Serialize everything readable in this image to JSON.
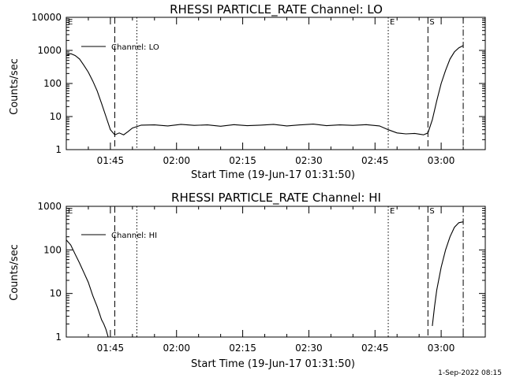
{
  "footer": {
    "date_stamp": "1-Sep-2022 08:15"
  },
  "chart_data": [
    {
      "type": "line",
      "title": "RHESSI PARTICLE_RATE Channel: LO",
      "xlabel": "Start Time (19-Jun-17 01:31:50)",
      "ylabel": "Counts/sec",
      "y_scale": "log",
      "ylim": [
        1,
        10000
      ],
      "xlim": [
        "01:35",
        "03:10"
      ],
      "x_ticks": [
        "01:45",
        "02:00",
        "02:15",
        "02:30",
        "02:45",
        "03:00"
      ],
      "y_ticks": [
        "1",
        "10",
        "100",
        "1000",
        "10000"
      ],
      "legend": {
        "position": "top-left",
        "entries": [
          "Channel: LO"
        ]
      },
      "markers": [
        {
          "time": "01:35",
          "style": "solid",
          "label": "E"
        },
        {
          "time": "01:46",
          "style": "dashed",
          "label": ""
        },
        {
          "time": "01:51",
          "style": "dotted",
          "label": ""
        },
        {
          "time": "02:48",
          "style": "dotted",
          "label": "E"
        },
        {
          "time": "02:57",
          "style": "dashed",
          "label": "S"
        },
        {
          "time": "03:05",
          "style": "dashdot",
          "label": ""
        }
      ],
      "series": [
        {
          "name": "Channel: LO",
          "x": [
            "01:35",
            "01:36",
            "01:37",
            "01:38",
            "01:39",
            "01:40",
            "01:41",
            "01:42",
            "01:43",
            "01:44",
            "01:45",
            "01:46",
            "01:47",
            "01:48",
            "01:49",
            "01:50",
            "01:52",
            "01:55",
            "01:58",
            "02:01",
            "02:04",
            "02:07",
            "02:10",
            "02:13",
            "02:16",
            "02:19",
            "02:22",
            "02:25",
            "02:28",
            "02:31",
            "02:34",
            "02:37",
            "02:40",
            "02:43",
            "02:46",
            "02:48",
            "02:50",
            "02:52",
            "02:54",
            "02:56",
            "02:57",
            "02:58",
            "02:59",
            "03:00",
            "03:01",
            "03:02",
            "03:03",
            "03:04",
            "03:05"
          ],
          "y": [
            700,
            800,
            700,
            550,
            350,
            220,
            120,
            60,
            25,
            10,
            4,
            2.8,
            3.2,
            2.8,
            3.5,
            4.5,
            5.5,
            5.6,
            5.2,
            5.8,
            5.4,
            5.6,
            5.1,
            5.7,
            5.3,
            5.5,
            5.8,
            5.2,
            5.6,
            5.9,
            5.3,
            5.6,
            5.4,
            5.7,
            5.2,
            4,
            3.2,
            3,
            3.1,
            2.8,
            3.2,
            8,
            30,
            100,
            250,
            550,
            900,
            1200,
            1400
          ]
        }
      ]
    },
    {
      "type": "line",
      "title": "RHESSI PARTICLE_RATE Channel: HI",
      "xlabel": "Start Time (19-Jun-17 01:31:50)",
      "ylabel": "Counts/sec",
      "y_scale": "log",
      "ylim": [
        1,
        1000
      ],
      "xlim": [
        "01:35",
        "03:10"
      ],
      "x_ticks": [
        "01:45",
        "02:00",
        "02:15",
        "02:30",
        "02:45",
        "03:00"
      ],
      "y_ticks": [
        "1",
        "10",
        "100",
        "1000"
      ],
      "legend": {
        "position": "top-left",
        "entries": [
          "Channel: HI"
        ]
      },
      "markers": [
        {
          "time": "01:35",
          "style": "solid",
          "label": "E"
        },
        {
          "time": "01:46",
          "style": "dashed",
          "label": ""
        },
        {
          "time": "01:51",
          "style": "dotted",
          "label": ""
        },
        {
          "time": "02:48",
          "style": "dotted",
          "label": "E"
        },
        {
          "time": "02:57",
          "style": "dashed",
          "label": "S"
        },
        {
          "time": "03:05",
          "style": "dashdot",
          "label": ""
        }
      ],
      "series": [
        {
          "name": "Channel: HI",
          "x": [
            "01:35",
            "01:36",
            "01:37",
            "01:38",
            "01:39",
            "01:40",
            "01:41",
            "01:42",
            "01:43",
            "01:43.5",
            "01:44",
            "01:44.5",
            "02:58",
            "02:58.5",
            "02:59",
            "03:00",
            "03:01",
            "03:02",
            "03:03",
            "03:04",
            "03:05"
          ],
          "y": [
            170,
            130,
            80,
            50,
            30,
            18,
            9,
            5,
            2.5,
            2,
            1.5,
            1,
            1.8,
            5,
            12,
            40,
            100,
            200,
            330,
            420,
            440
          ]
        }
      ]
    }
  ]
}
